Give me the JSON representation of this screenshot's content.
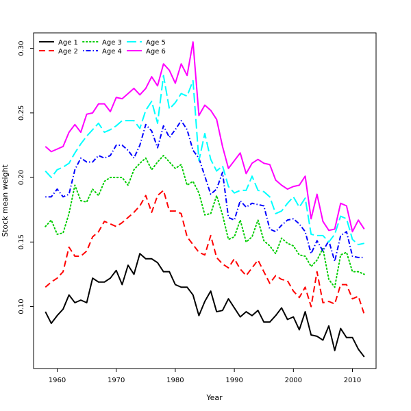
{
  "chart_data": {
    "type": "line",
    "title": "",
    "xlabel": "Year",
    "ylabel": "Stock mean weight",
    "xlim": [
      1956,
      2014
    ],
    "ylim": [
      0.052,
      0.312
    ],
    "x_ticks": [
      1960,
      1970,
      1980,
      1990,
      2000,
      2010
    ],
    "y_ticks": [
      0.1,
      0.15,
      0.2,
      0.25,
      0.3
    ],
    "y_tick_labels": [
      "0.10",
      "0.15",
      "0.20",
      "0.25",
      "0.30"
    ],
    "legend_position": "top-left",
    "x": [
      1958,
      1959,
      1960,
      1961,
      1962,
      1963,
      1964,
      1965,
      1966,
      1967,
      1968,
      1969,
      1970,
      1971,
      1972,
      1973,
      1974,
      1975,
      1976,
      1977,
      1978,
      1979,
      1980,
      1981,
      1982,
      1983,
      1984,
      1985,
      1986,
      1987,
      1988,
      1989,
      1990,
      1991,
      1992,
      1993,
      1994,
      1995,
      1996,
      1997,
      1998,
      1999,
      2000,
      2001,
      2002,
      2003,
      2004,
      2005,
      2006,
      2007,
      2008,
      2009,
      2010,
      2011,
      2012
    ],
    "series": [
      {
        "name": "Age 1",
        "color": "#000000",
        "dash": "solid",
        "values": [
          0.096,
          0.087,
          0.093,
          0.098,
          0.109,
          0.103,
          0.105,
          0.103,
          0.122,
          0.119,
          0.119,
          0.122,
          0.128,
          0.117,
          0.132,
          0.125,
          0.141,
          0.137,
          0.137,
          0.134,
          0.127,
          0.127,
          0.117,
          0.115,
          0.115,
          0.109,
          0.093,
          0.104,
          0.112,
          0.096,
          0.097,
          0.106,
          0.099,
          0.092,
          0.096,
          0.093,
          0.097,
          0.088,
          0.088,
          0.093,
          0.099,
          0.09,
          0.092,
          0.082,
          0.096,
          0.078,
          0.077,
          0.074,
          0.085,
          0.066,
          0.083,
          0.076,
          0.076,
          0.067,
          0.061
        ]
      },
      {
        "name": "Age 2",
        "color": "#ff0000",
        "dash": "long",
        "values": [
          0.115,
          0.119,
          0.122,
          0.127,
          0.146,
          0.139,
          0.139,
          0.143,
          0.154,
          0.158,
          0.166,
          0.164,
          0.162,
          0.165,
          0.169,
          0.173,
          0.178,
          0.186,
          0.173,
          0.186,
          0.19,
          0.174,
          0.174,
          0.172,
          0.154,
          0.148,
          0.142,
          0.14,
          0.155,
          0.138,
          0.133,
          0.13,
          0.137,
          0.129,
          0.124,
          0.13,
          0.136,
          0.127,
          0.118,
          0.124,
          0.121,
          0.12,
          0.112,
          0.107,
          0.115,
          0.1,
          0.127,
          0.103,
          0.104,
          0.102,
          0.117,
          0.117,
          0.106,
          0.108,
          0.094
        ]
      },
      {
        "name": "Age 3",
        "color": "#00cd00",
        "dash": "dotted",
        "values": [
          0.162,
          0.167,
          0.156,
          0.157,
          0.172,
          0.194,
          0.182,
          0.181,
          0.191,
          0.186,
          0.197,
          0.2,
          0.2,
          0.2,
          0.194,
          0.206,
          0.211,
          0.215,
          0.206,
          0.212,
          0.217,
          0.212,
          0.207,
          0.21,
          0.194,
          0.197,
          0.188,
          0.171,
          0.172,
          0.186,
          0.171,
          0.152,
          0.154,
          0.167,
          0.15,
          0.154,
          0.167,
          0.151,
          0.147,
          0.141,
          0.153,
          0.149,
          0.147,
          0.14,
          0.139,
          0.131,
          0.136,
          0.145,
          0.121,
          0.115,
          0.14,
          0.142,
          0.127,
          0.127,
          0.125
        ]
      },
      {
        "name": "Age 4",
        "color": "#0000ff",
        "dash": "dashdot",
        "values": [
          0.185,
          0.185,
          0.191,
          0.185,
          0.187,
          0.206,
          0.215,
          0.212,
          0.212,
          0.217,
          0.215,
          0.217,
          0.225,
          0.225,
          0.221,
          0.215,
          0.225,
          0.241,
          0.236,
          0.223,
          0.24,
          0.231,
          0.237,
          0.244,
          0.237,
          0.221,
          0.215,
          0.201,
          0.187,
          0.191,
          0.204,
          0.169,
          0.167,
          0.182,
          0.177,
          0.18,
          0.179,
          0.178,
          0.16,
          0.158,
          0.163,
          0.167,
          0.168,
          0.164,
          0.158,
          0.141,
          0.151,
          0.143,
          0.151,
          0.135,
          0.155,
          0.158,
          0.139,
          0.138,
          0.138
        ]
      },
      {
        "name": "Age 5",
        "color": "#00ffff",
        "dash": "longdash",
        "values": [
          0.205,
          0.2,
          0.206,
          0.208,
          0.211,
          0.219,
          0.226,
          0.232,
          0.237,
          0.242,
          0.235,
          0.237,
          0.24,
          0.244,
          0.244,
          0.244,
          0.238,
          0.252,
          0.259,
          0.242,
          0.279,
          0.253,
          0.258,
          0.265,
          0.263,
          0.275,
          0.213,
          0.234,
          0.214,
          0.205,
          0.209,
          0.193,
          0.188,
          0.19,
          0.19,
          0.201,
          0.19,
          0.189,
          0.185,
          0.172,
          0.174,
          0.18,
          0.185,
          0.177,
          0.184,
          0.156,
          0.155,
          0.155,
          0.15,
          0.156,
          0.17,
          0.168,
          0.152,
          0.148,
          0.149
        ]
      },
      {
        "name": "Age 6",
        "color": "#ff00ff",
        "dash": "solid",
        "values": [
          0.224,
          0.22,
          0.222,
          0.224,
          0.235,
          0.241,
          0.235,
          0.249,
          0.25,
          0.257,
          0.257,
          0.251,
          0.262,
          0.261,
          0.265,
          0.269,
          0.264,
          0.269,
          0.278,
          0.271,
          0.288,
          0.283,
          0.273,
          0.288,
          0.279,
          0.305,
          0.248,
          0.256,
          0.252,
          0.245,
          0.224,
          0.207,
          0.213,
          0.219,
          0.203,
          0.211,
          0.214,
          0.211,
          0.21,
          0.198,
          0.194,
          0.191,
          0.193,
          0.194,
          0.201,
          0.168,
          0.187,
          0.166,
          0.159,
          0.16,
          0.18,
          0.178,
          0.158,
          0.167,
          0.16
        ]
      }
    ]
  }
}
